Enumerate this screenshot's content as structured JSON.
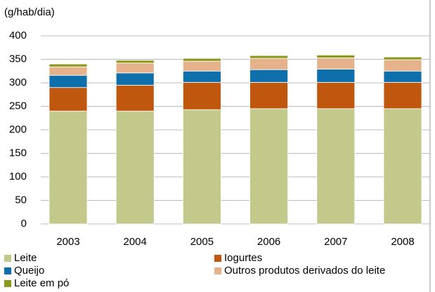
{
  "chart_data": {
    "type": "stacked-bar",
    "y_label": "(g/hab/dia)",
    "categories": [
      "2003",
      "2004",
      "2005",
      "2006",
      "2007",
      "2008"
    ],
    "series": [
      {
        "name": "Leite",
        "color": "#c3c98b",
        "values": [
          240,
          240,
          243,
          245,
          245,
          245
        ]
      },
      {
        "name": "Iogurtes",
        "color": "#c0570f",
        "values": [
          50,
          55,
          58,
          56,
          56,
          56
        ]
      },
      {
        "name": "Queijo",
        "color": "#0f6fab",
        "values": [
          26,
          26,
          24,
          27,
          28,
          24
        ]
      },
      {
        "name": "Outros produtos derivados do leite",
        "color": "#e6b28c",
        "values": [
          18,
          21,
          21,
          24,
          24,
          24
        ]
      },
      {
        "name": "Leite em pó",
        "color": "#8c9a1c",
        "values": [
          6,
          6,
          6,
          6,
          6,
          6
        ]
      }
    ],
    "ylim": [
      0,
      400
    ],
    "yticks": [
      0,
      50,
      100,
      150,
      200,
      250,
      300,
      350,
      400
    ],
    "grid": true
  }
}
